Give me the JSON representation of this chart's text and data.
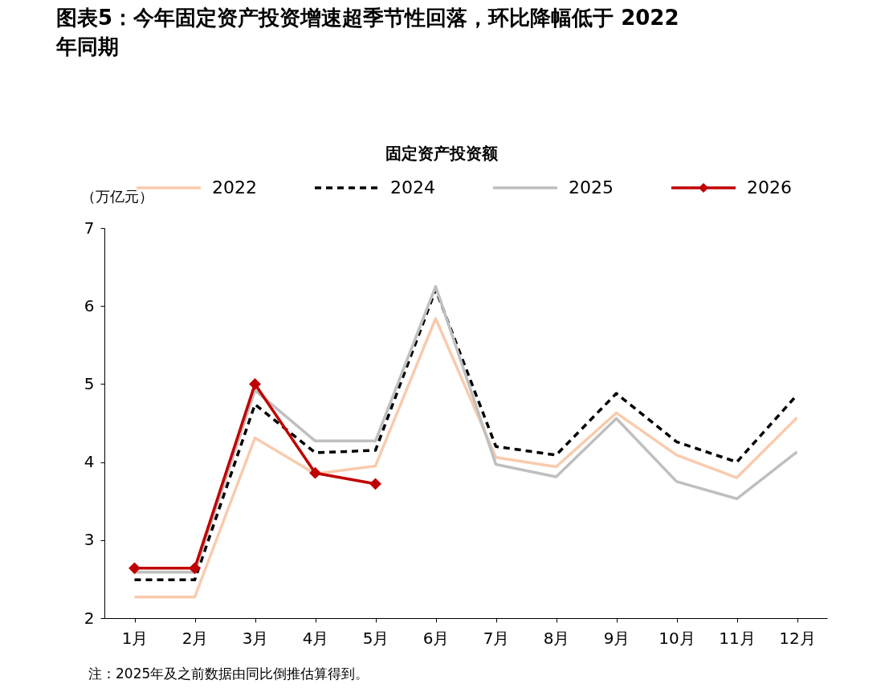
{
  "chart_data": {
    "type": "line",
    "title": "图表5：今年固定资产投资增速超季节性回落，环比降幅低于 2022 年同期",
    "subtitle": "固定资产投资额",
    "ylabel": "（万亿元）",
    "categories": [
      "1月",
      "2月",
      "3月",
      "4月",
      "5月",
      "6月",
      "7月",
      "8月",
      "9月",
      "10月",
      "11月",
      "12月"
    ],
    "series": [
      {
        "name": "2022",
        "color": "#f8cbad",
        "line_style": "solid",
        "values": [
          2.27,
          2.27,
          4.31,
          3.85,
          3.95,
          5.84,
          4.06,
          3.94,
          4.63,
          4.09,
          3.8,
          4.57
        ]
      },
      {
        "name": "2024",
        "color": "#000000",
        "line_style": "dashed",
        "values": [
          2.49,
          2.49,
          4.74,
          4.12,
          4.15,
          6.21,
          4.2,
          4.09,
          4.88,
          4.26,
          4.0,
          4.86
        ]
      },
      {
        "name": "2025",
        "color": "#bfbfbf",
        "line_style": "solid",
        "values": [
          2.59,
          2.59,
          4.92,
          4.27,
          4.27,
          6.25,
          3.97,
          3.81,
          4.56,
          3.75,
          3.53,
          4.13
        ]
      },
      {
        "name": "2026",
        "color": "#c00000",
        "line_style": "solid",
        "marker": "diamond",
        "values": [
          2.64,
          2.64,
          5.0,
          3.86,
          3.72,
          null,
          null,
          null,
          null,
          null,
          null,
          null
        ]
      }
    ],
    "ylim": [
      2,
      7
    ],
    "yticks": [
      2,
      3,
      4,
      5,
      6,
      7
    ],
    "grid": false,
    "legend": "top",
    "annotations": [
      "注：2025年及之前数据由同比倒推估算得到。"
    ]
  }
}
